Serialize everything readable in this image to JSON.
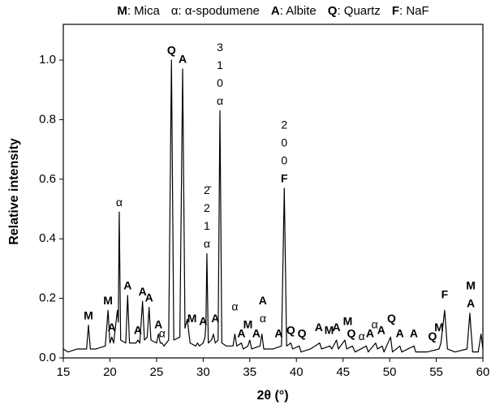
{
  "chart_data": {
    "type": "line",
    "color": "#000000",
    "legend": [
      {
        "key": "M",
        "label": ": Mica"
      },
      {
        "key": "α",
        "label": ": α-spodumene"
      },
      {
        "key": "A",
        "label": ": Albite"
      },
      {
        "key": "Q",
        "label": ": Quartz"
      },
      {
        "key": "F",
        "label": ": NaF"
      }
    ],
    "x_label": "2θ (°)",
    "y_label": "Relative intensity",
    "xlim": [
      15,
      60
    ],
    "xticks": [
      15,
      20,
      25,
      30,
      35,
      40,
      45,
      50,
      55,
      60
    ],
    "ylim": [
      0,
      1.12
    ],
    "yticks": [
      {
        "value": 0,
        "label": "0.0"
      },
      {
        "value": 0.2,
        "label": "0.2"
      },
      {
        "value": 0.4,
        "label": "0.4"
      },
      {
        "value": 0.6,
        "label": "0.6"
      },
      {
        "value": 0.8,
        "label": "0.8"
      },
      {
        "value": 1.0,
        "label": "1.0"
      }
    ],
    "x": [
      15,
      15.5,
      16.5,
      17.5,
      17.7,
      17.9,
      18.5,
      19.5,
      19.8,
      20.0,
      20.2,
      20.4,
      20.8,
      20.9,
      21.0,
      21.15,
      21.7,
      21.9,
      22.1,
      22.8,
      23.0,
      23.2,
      23.5,
      23.7,
      24.0,
      24.2,
      24.4,
      25.0,
      25.2,
      25.4,
      25.6,
      25.8,
      26.3,
      26.6,
      26.85,
      27.5,
      27.8,
      28.05,
      28.3,
      28.6,
      29.2,
      29.4,
      29.6,
      30.0,
      30.2,
      30.3,
      30.4,
      30.55,
      30.9,
      31.1,
      31.3,
      31.6,
      31.8,
      32.0,
      32.5,
      33.2,
      33.4,
      33.6,
      34.1,
      34.3,
      34.8,
      35.0,
      35.2,
      36.1,
      36.3,
      36.5,
      37.5,
      38.4,
      38.7,
      38.95,
      39.4,
      39.6,
      40.3,
      40.5,
      41.5,
      42.5,
      42.7,
      43.6,
      43.8,
      44.3,
      44.5,
      45.2,
      45.4,
      46.0,
      46.3,
      47.5,
      47.7,
      48.5,
      48.7,
      49.2,
      49.4,
      50.1,
      50.3,
      51.1,
      51.3,
      52.6,
      52.8,
      54.0,
      55.3,
      55.5,
      55.9,
      56.2,
      57.0,
      58.3,
      58.6,
      58.9,
      59.5,
      59.8,
      60
    ],
    "values": [
      0.03,
      0.02,
      0.03,
      0.03,
      0.11,
      0.03,
      0.03,
      0.04,
      0.16,
      0.05,
      0.07,
      0.05,
      0.16,
      0.12,
      0.49,
      0.06,
      0.05,
      0.21,
      0.05,
      0.05,
      0.06,
      0.05,
      0.19,
      0.06,
      0.07,
      0.17,
      0.06,
      0.05,
      0.08,
      0.05,
      0.05,
      0.04,
      0.06,
      1.0,
      0.06,
      0.07,
      0.97,
      0.1,
      0.13,
      0.05,
      0.04,
      0.05,
      0.04,
      0.05,
      0.07,
      0.12,
      0.35,
      0.05,
      0.06,
      0.08,
      0.05,
      0.06,
      0.83,
      0.05,
      0.04,
      0.04,
      0.08,
      0.04,
      0.05,
      0.03,
      0.04,
      0.06,
      0.03,
      0.04,
      0.08,
      0.03,
      0.03,
      0.04,
      0.57,
      0.04,
      0.05,
      0.03,
      0.04,
      0.02,
      0.03,
      0.05,
      0.03,
      0.04,
      0.03,
      0.06,
      0.03,
      0.06,
      0.03,
      0.04,
      0.02,
      0.04,
      0.02,
      0.05,
      0.03,
      0.04,
      0.02,
      0.07,
      0.02,
      0.04,
      0.02,
      0.04,
      0.02,
      0.02,
      0.03,
      0.05,
      0.16,
      0.03,
      0.02,
      0.03,
      0.15,
      0.02,
      0.02,
      0.08,
      0.03
    ],
    "annotations": [
      {
        "text": "M",
        "x": 17.7,
        "y": 0.13
      },
      {
        "text": "M",
        "x": 19.8,
        "y": 0.18
      },
      {
        "text": "A",
        "x": 20.2,
        "y": 0.09
      },
      {
        "text": "α",
        "x": 21.0,
        "y": 0.51
      },
      {
        "text": "A",
        "x": 21.9,
        "y": 0.23
      },
      {
        "text": "A",
        "x": 23.0,
        "y": 0.08
      },
      {
        "text": "A",
        "x": 23.5,
        "y": 0.21
      },
      {
        "text": "A",
        "x": 24.2,
        "y": 0.19
      },
      {
        "text": "A",
        "x": 25.2,
        "y": 0.1
      },
      {
        "text": "α",
        "x": 25.6,
        "y": 0.07
      },
      {
        "text": "Q",
        "x": 26.6,
        "y": 1.02
      },
      {
        "text": "A",
        "x": 27.8,
        "y": 0.99
      },
      {
        "text": "M",
        "x": 28.8,
        "y": 0.12
      },
      {
        "text": "A",
        "x": 30.0,
        "y": 0.11
      },
      {
        "text": [
          "2̄",
          "2",
          "1",
          "α"
        ],
        "x": 30.4,
        "y": 0.37
      },
      {
        "text": "A",
        "x": 31.3,
        "y": 0.12
      },
      {
        "text": [
          "3",
          "1",
          "0",
          "α"
        ],
        "x": 31.8,
        "y": 0.85
      },
      {
        "text": "α",
        "x": 33.4,
        "y": 0.16
      },
      {
        "text": "A",
        "x": 34.1,
        "y": 0.07
      },
      {
        "text": "M",
        "x": 34.8,
        "y": 0.1
      },
      {
        "text": "A",
        "x": 35.7,
        "y": 0.07
      },
      {
        "text": [
          "A",
          "α"
        ],
        "x": 36.4,
        "y": 0.12
      },
      {
        "text": "A",
        "x": 38.1,
        "y": 0.07
      },
      {
        "text": [
          "F",
          "0",
          "0",
          "2"
        ],
        "x": 38.7,
        "y": 0.59,
        "reverse": true
      },
      {
        "text": "Q",
        "x": 39.4,
        "y": 0.08
      },
      {
        "text": "Q",
        "x": 40.6,
        "y": 0.07
      },
      {
        "text": "A",
        "x": 42.4,
        "y": 0.09
      },
      {
        "text": "M",
        "x": 43.5,
        "y": 0.08
      },
      {
        "text": "A",
        "x": 44.3,
        "y": 0.09
      },
      {
        "text": "M",
        "x": 45.5,
        "y": 0.11
      },
      {
        "text": "Q",
        "x": 45.9,
        "y": 0.07
      },
      {
        "text": "α",
        "x": 47.0,
        "y": 0.06
      },
      {
        "text": "A",
        "x": 47.9,
        "y": 0.07
      },
      {
        "text": "α",
        "x": 48.4,
        "y": 0.1
      },
      {
        "text": "A",
        "x": 49.1,
        "y": 0.08
      },
      {
        "text": "Q",
        "x": 50.2,
        "y": 0.12
      },
      {
        "text": "A",
        "x": 51.1,
        "y": 0.07
      },
      {
        "text": "A",
        "x": 52.6,
        "y": 0.07
      },
      {
        "text": "Q",
        "x": 54.6,
        "y": 0.06
      },
      {
        "text": "M",
        "x": 55.3,
        "y": 0.09
      },
      {
        "text": "F",
        "x": 55.9,
        "y": 0.2
      },
      {
        "text": [
          "M",
          "A"
        ],
        "x": 58.7,
        "y": 0.17
      }
    ]
  }
}
